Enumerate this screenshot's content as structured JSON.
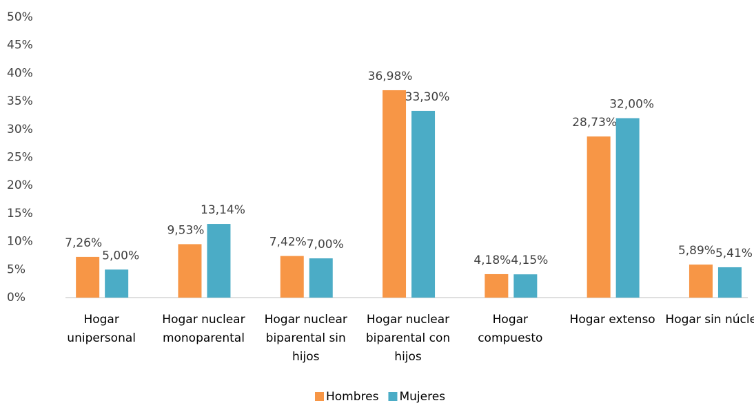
{
  "chart_data": {
    "type": "bar",
    "categories": [
      "Hogar unipersonal",
      "Hogar nuclear monoparental",
      "Hogar nuclear biparental sin hijos",
      "Hogar nuclear biparental con hijos",
      "Hogar compuesto",
      "Hogar extenso",
      "Hogar sin núcleo"
    ],
    "series": [
      {
        "name": "Hombres",
        "color": "#f79646",
        "values": [
          7.26,
          9.53,
          7.42,
          36.98,
          4.18,
          28.73,
          5.89
        ],
        "value_labels": [
          "7,26%",
          "9,53%",
          "7,42%",
          "36,98%",
          "4,18%",
          "28,73%",
          "5,89%"
        ]
      },
      {
        "name": "Mujeres",
        "color": "#4bacc6",
        "values": [
          5.0,
          13.14,
          7.0,
          33.3,
          4.15,
          32.0,
          5.41
        ],
        "value_labels": [
          "5,00%",
          "13,14%",
          "7,00%",
          "33,30%",
          "4,15%",
          "32,00%",
          "5,41%"
        ]
      }
    ],
    "ylim": [
      0,
      50
    ],
    "yticks": [
      {
        "value": 0,
        "label": "0%"
      },
      {
        "value": 5,
        "label": "5%"
      },
      {
        "value": 10,
        "label": "10%"
      },
      {
        "value": 15,
        "label": "15%"
      },
      {
        "value": 20,
        "label": "20%"
      },
      {
        "value": 25,
        "label": "25%"
      },
      {
        "value": 30,
        "label": "30%"
      },
      {
        "value": 35,
        "label": "35%"
      },
      {
        "value": 40,
        "label": "40%"
      },
      {
        "value": 45,
        "label": "45%"
      },
      {
        "value": 50,
        "label": "50%"
      }
    ],
    "grid": false,
    "legend": "bottom"
  }
}
